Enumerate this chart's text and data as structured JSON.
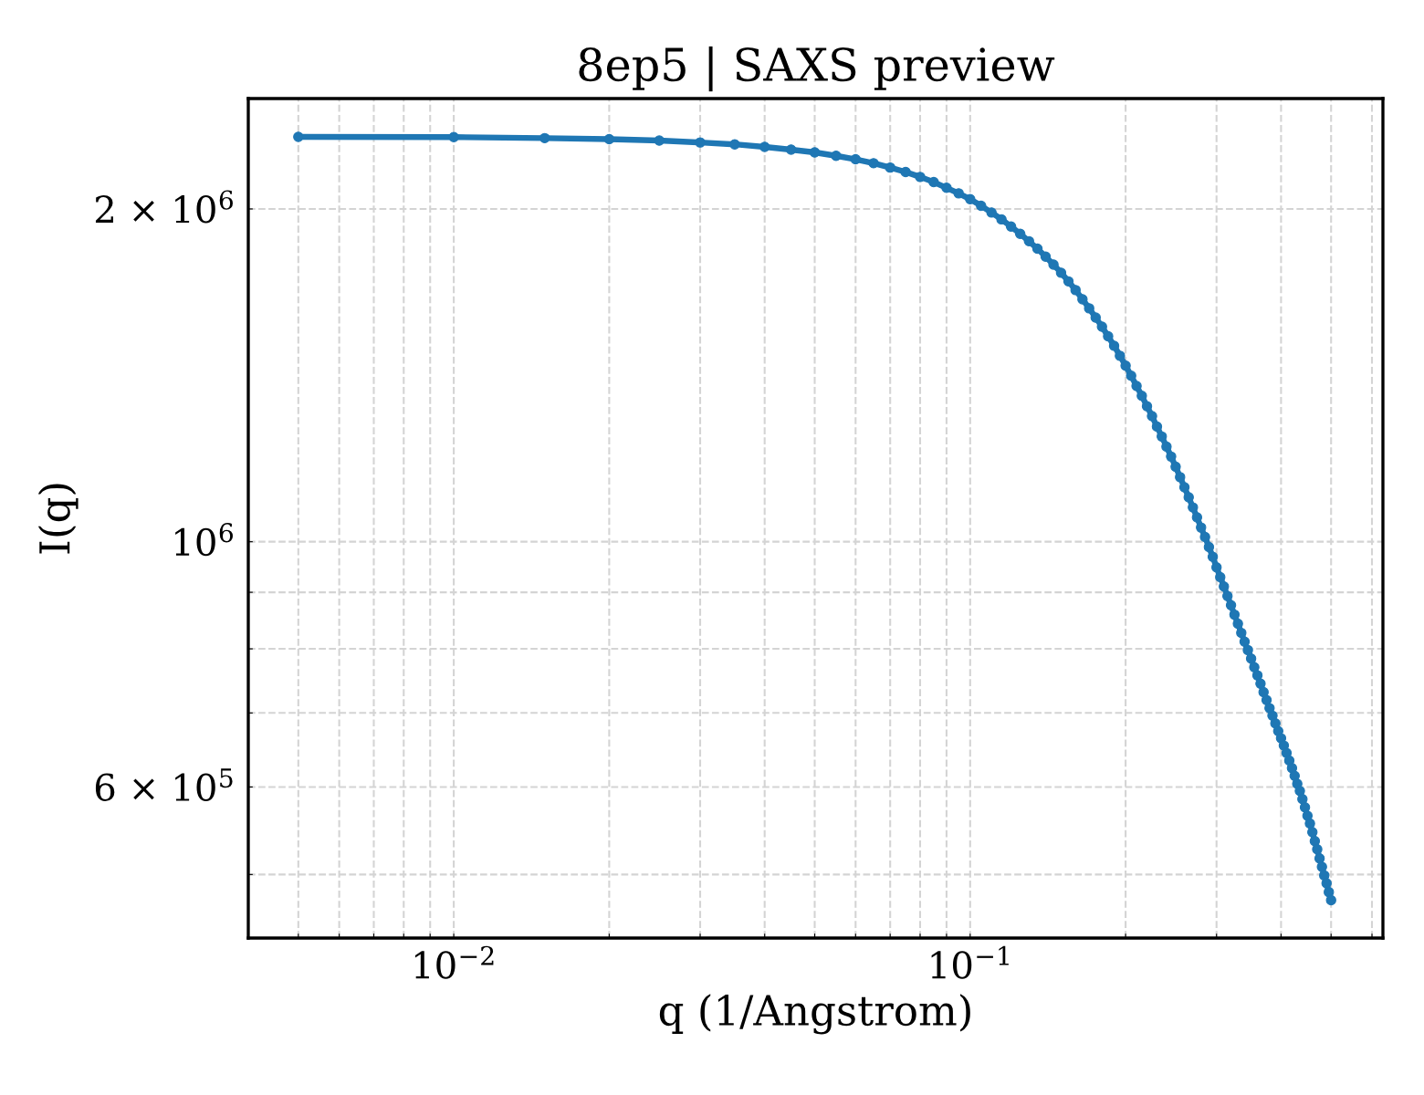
{
  "chart_data": {
    "type": "line",
    "title": "8ep5 | SAXS preview",
    "xlabel": "q (1/Angstrom)",
    "ylabel": "I(q)",
    "x": [
      0.005,
      0.01,
      0.015,
      0.02,
      0.025,
      0.03,
      0.035,
      0.04,
      0.045,
      0.05,
      0.055,
      0.06,
      0.065,
      0.07,
      0.075,
      0.08,
      0.085,
      0.09,
      0.095,
      0.1,
      0.105,
      0.11,
      0.115,
      0.12,
      0.125,
      0.13,
      0.135,
      0.14,
      0.145,
      0.15,
      0.155,
      0.16,
      0.165,
      0.17,
      0.175,
      0.18,
      0.185,
      0.19,
      0.195,
      0.2,
      0.205,
      0.21,
      0.215,
      0.22,
      0.225,
      0.23,
      0.235,
      0.24,
      0.245,
      0.25,
      0.255,
      0.26,
      0.265,
      0.27,
      0.275,
      0.28,
      0.285,
      0.29,
      0.295,
      0.3,
      0.305,
      0.31,
      0.315,
      0.32,
      0.325,
      0.33,
      0.335,
      0.34,
      0.345,
      0.35,
      0.355,
      0.36,
      0.365,
      0.37,
      0.375,
      0.38,
      0.385,
      0.39,
      0.395,
      0.4,
      0.405,
      0.41,
      0.415,
      0.42,
      0.425,
      0.43,
      0.435,
      0.44,
      0.445,
      0.45,
      0.455,
      0.46,
      0.465,
      0.47,
      0.475,
      0.48,
      0.485,
      0.49,
      0.495,
      0.5
    ],
    "series": [
      {
        "color": "#1f77b4",
        "values": [
          2324000,
          2323000,
          2318000,
          2313000,
          2306000,
          2297000,
          2288000,
          2276000,
          2263000,
          2250000,
          2234000,
          2218000,
          2200000,
          2180000,
          2160000,
          2138000,
          2115000,
          2090000,
          2066000,
          2041000,
          2013000,
          1985000,
          1957000,
          1928000,
          1899000,
          1870000,
          1841000,
          1811000,
          1781000,
          1751000,
          1720000,
          1689000,
          1657000,
          1626000,
          1595000,
          1565000,
          1534000,
          1504000,
          1473000,
          1443000,
          1413000,
          1383000,
          1355000,
          1326000,
          1299000,
          1271000,
          1245000,
          1219000,
          1194000,
          1169000,
          1144000,
          1120000,
          1097000,
          1074000,
          1052000,
          1030000,
          1010000,
          989000,
          969000,
          948000,
          929000,
          911000,
          893000,
          876000,
          859000,
          843000,
          827000,
          812000,
          798000,
          784000,
          770000,
          757000,
          744000,
          731000,
          719000,
          707000,
          696000,
          685000,
          674000,
          664000,
          654000,
          644000,
          634000,
          624000,
          614000,
          604000,
          595000,
          585000,
          575000,
          565000,
          556000,
          546000,
          536000,
          527000,
          517000,
          508000,
          499000,
          491000,
          482000,
          474000
        ]
      }
    ],
    "log": "xy",
    "xlim": [
      0.004,
      0.63
    ],
    "ylim": [
      438000,
      2517000
    ],
    "xticks": [
      {
        "value": 0.005,
        "label": null
      },
      {
        "value": 0.006,
        "label": null
      },
      {
        "value": 0.007,
        "label": null
      },
      {
        "value": 0.008,
        "label": null
      },
      {
        "value": 0.009,
        "label": null
      },
      {
        "value": 0.01,
        "label": "10$^{−2}$"
      },
      {
        "value": 0.02,
        "label": null
      },
      {
        "value": 0.03,
        "label": null
      },
      {
        "value": 0.04,
        "label": null
      },
      {
        "value": 0.05,
        "label": null
      },
      {
        "value": 0.06,
        "label": null
      },
      {
        "value": 0.07,
        "label": null
      },
      {
        "value": 0.08,
        "label": null
      },
      {
        "value": 0.09,
        "label": null
      },
      {
        "value": 0.1,
        "label": "10$^{−1}$"
      },
      {
        "value": 0.2,
        "label": null
      },
      {
        "value": 0.3,
        "label": null
      },
      {
        "value": 0.4,
        "label": null
      },
      {
        "value": 0.5,
        "label": null
      },
      {
        "value": 0.6,
        "label": null
      }
    ],
    "yticks": [
      {
        "value": 500000,
        "label": null
      },
      {
        "value": 600000,
        "label": "6 × 10$^{5}$"
      },
      {
        "value": 700000,
        "label": null
      },
      {
        "value": 800000,
        "label": null
      },
      {
        "value": 900000,
        "label": null
      },
      {
        "value": 1000000,
        "label": "10$^{6}$"
      },
      {
        "value": 2000000,
        "label": "2 × 10$^{6}$"
      }
    ],
    "grid": true,
    "marker": "circle",
    "line_style": "solid"
  }
}
